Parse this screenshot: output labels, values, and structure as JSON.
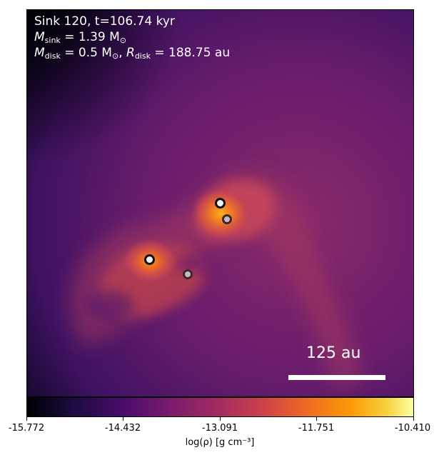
{
  "annotation": {
    "line1": "Sink 120, t=106.74 kyr",
    "msink_symbol": "M",
    "msink_sub": "sink",
    "msink_value": " = 1.39 M",
    "msink_unit_sub": "⊙",
    "mdisk_symbol": "M",
    "mdisk_sub": "disk",
    "mdisk_value": " = 0.5 M",
    "mdisk_unit_sub": "⊙",
    "rdisk_sep": ", ",
    "rdisk_symbol": "R",
    "rdisk_sub": "disk",
    "rdisk_value": " = 188.75 au"
  },
  "scale_bar": {
    "label": "125 au"
  },
  "sinks": [
    {
      "name": "sink-primary",
      "fill": "#f2f2f2",
      "ring": "#111111"
    },
    {
      "name": "sink-companion-1",
      "fill": "#c9b8c2",
      "ring": "#3a2a2a"
    },
    {
      "name": "sink-secondary",
      "fill": "#f2f2f2",
      "ring": "#111111"
    },
    {
      "name": "sink-companion-2",
      "fill": "#c9b8c2",
      "ring": "#3a2a2a"
    }
  ],
  "colorbar": {
    "colormap": "inferno",
    "ticks": [
      "-15.772",
      "-14.432",
      "-13.091",
      "-11.751",
      "-10.410"
    ],
    "label": "log(ρ) [g cm⁻³]"
  }
}
